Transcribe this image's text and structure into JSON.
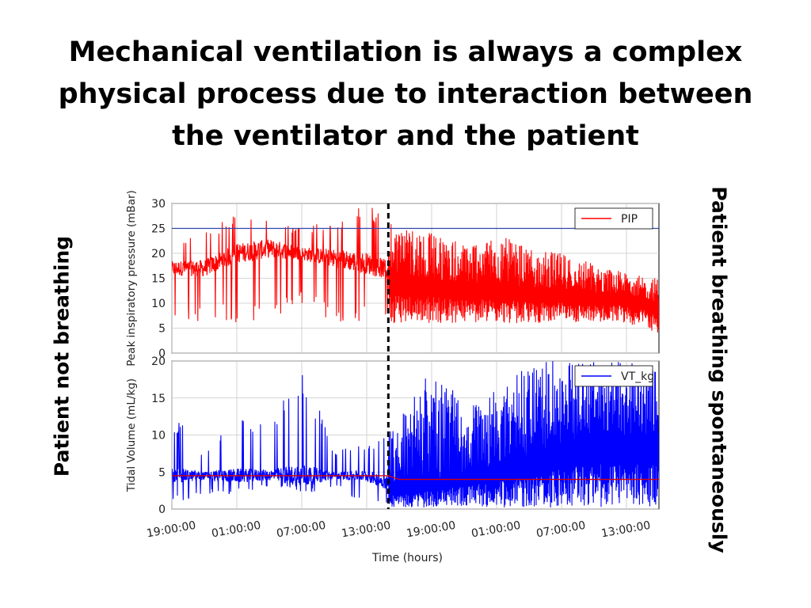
{
  "slide": {
    "title_lines": [
      "Mechanical ventilation is always a complex",
      "physical process due to interaction between",
      "the ventilator and the patient"
    ],
    "left_label": "Patient not breathing",
    "right_label": "Patient breathing spontaneously"
  },
  "chart_data": [
    {
      "type": "line",
      "panel": "top",
      "ylabel": "Peak inspiratory pressure (mBar)",
      "ylim": [
        0,
        30
      ],
      "yticks": [
        "0",
        "5",
        "10",
        "15",
        "20",
        "25",
        "30"
      ],
      "grid": true,
      "legend_position": "top-right",
      "series": [
        {
          "name": "PIP",
          "color": "#ff0000",
          "approx_profile": {
            "x_hours": [
              0,
              3,
              6,
              9,
              12,
              15,
              18,
              21,
              24,
              27,
              30,
              33,
              36,
              39,
              42,
              45
            ],
            "typical_y": [
              17,
              17,
              20,
              21,
              20,
              19,
              18,
              16,
              15,
              14,
              14,
              13,
              13,
              12,
              12,
              10
            ],
            "min_y": [
              6,
              6,
              6,
              6,
              10,
              6,
              6,
              6,
              6,
              6,
              6,
              6,
              6,
              6,
              6,
              4
            ],
            "max_y": [
              22,
              25,
              28,
              27,
              25,
              27,
              30,
              26,
              24,
              22,
              24,
              21,
              20,
              18,
              16,
              15
            ]
          }
        }
      ],
      "reference_lines": [
        {
          "y": 25,
          "color": "#3344aa"
        }
      ]
    },
    {
      "type": "line",
      "panel": "bottom",
      "ylabel": "Tidal Volume (mL/kg)",
      "xlabel": "Time (hours)",
      "ylim": [
        0,
        20
      ],
      "yticks": [
        "0",
        "5",
        "10",
        "15",
        "20"
      ],
      "xticks": [
        "19:00:00",
        "01:00:00",
        "07:00:00",
        "13:00:00",
        "19:00:00",
        "01:00:00",
        "07:00:00",
        "13:00:00"
      ],
      "xtick_hours": [
        0,
        6,
        12,
        18,
        24,
        30,
        36,
        42
      ],
      "xlim_hours": [
        0,
        45
      ],
      "grid": true,
      "legend_position": "top-right",
      "series": [
        {
          "name": "VT_kg",
          "color": "#0000ff",
          "approx_profile": {
            "x_hours": [
              0,
              3,
              6,
              9,
              12,
              15,
              18,
              21,
              24,
              27,
              30,
              33,
              36,
              39,
              42,
              45
            ],
            "typical_y": [
              4.5,
              4.5,
              4.5,
              4.6,
              4.5,
              4.5,
              4.5,
              3,
              4,
              5,
              6,
              7,
              9,
              10,
              10,
              10
            ],
            "min_y": [
              0.5,
              2,
              2,
              3,
              2,
              3,
              0.5,
              0.2,
              0.2,
              0.2,
              0.2,
              0.2,
              0.2,
              0.2,
              0.2,
              0.2
            ],
            "max_y": [
              13,
              8,
              13,
              11,
              20,
              8,
              9,
              12,
              20,
              14,
              16,
              20,
              20,
              20,
              20,
              19
            ]
          }
        }
      ],
      "reference_lines": [
        {
          "y_segments": [
            [
              0,
              20,
              4.5
            ],
            [
              21,
              45,
              4.0
            ]
          ],
          "color": "#dd0000"
        }
      ]
    }
  ],
  "event_marker": {
    "x_hours": 20.0,
    "style": "dashed",
    "color": "#000000"
  }
}
